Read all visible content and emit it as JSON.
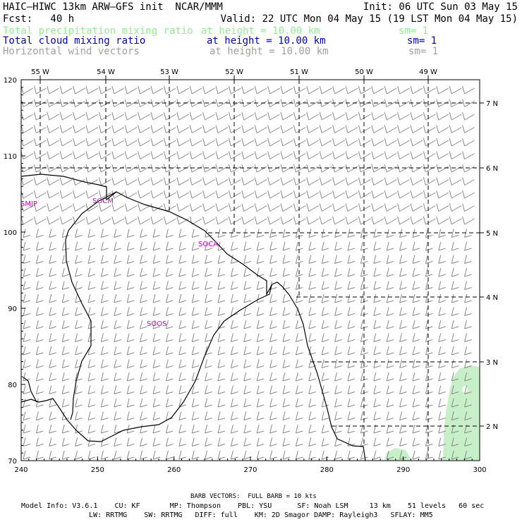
{
  "header": {
    "line1_left": "HAIC–HIWC 13km ARW–GFS init  NCAR/MMM",
    "line1_right": "Init: 06 UTC Sun 03 May 15",
    "line2_left": "Fcst:   40 h",
    "line2_right": "Valid: 22 UTC Mon 04 May 15 (19 LST Mon 04 May 15)",
    "fields": [
      {
        "name": "Total precipitation mixing ratio",
        "height": "at height = 10.00 km",
        "sm": "sm= 1",
        "color": "#90ee90"
      },
      {
        "name": "Total cloud mixing ratio",
        "height": "at height = 10.00 km",
        "sm": "sm= 1",
        "color": "#0000cd"
      },
      {
        "name": "Horizontal wind vectors",
        "height": "at height = 10.00 km",
        "sm": "sm= 1",
        "color": "#a0a0a0"
      }
    ]
  },
  "axes": {
    "x_ticks": [
      "240",
      "250",
      "260",
      "270",
      "280",
      "290",
      "300"
    ],
    "y_ticks": [
      "70",
      "80",
      "90",
      "100",
      "110",
      "120"
    ],
    "lon_labels": [
      "55 W",
      "54 W",
      "53 W",
      "52 W",
      "51 W",
      "50 W",
      "49 W"
    ],
    "lat_labels": [
      "7 N",
      "6 N",
      "5 N",
      "4 N",
      "3 N",
      "2 N"
    ]
  },
  "stations": [
    {
      "name": "SMJP",
      "color": "#cc00cc"
    },
    {
      "name": "SOCM",
      "color": "#cc00cc"
    },
    {
      "name": "SOCA",
      "color": "#cc00cc"
    },
    {
      "name": "SOOS",
      "color": "#cc00cc"
    }
  ],
  "footer": {
    "barb": "BARB VECTORS:  FULL BARB = 10 kts",
    "model_line1": "Model Info: V3.6.1    CU: KF       MP: Thompson    PBL: YSU      SF: Noah LSM     13 km    51 levels   60 sec",
    "model_line2": "LW: RRTMG    SW: RRTMG   DIFF: full    KM: 2D Smagor DAMP: Rayleigh3   SFLAY: MM5"
  },
  "colors": {
    "precip": "#c8f0c8",
    "barb": "#888888",
    "station": "#cc00cc",
    "coast": "#000000"
  }
}
